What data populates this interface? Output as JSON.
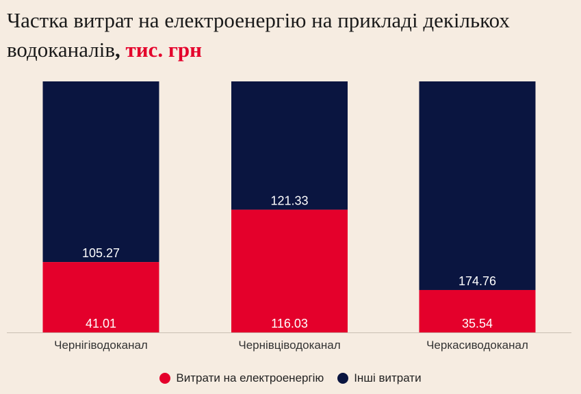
{
  "title": {
    "main": "Частка витрат на електроенергію на прикладі декількох водоканалів",
    "comma": ",",
    "unit": "тис. грн"
  },
  "colors": {
    "background": "#f6ece1",
    "electricity": "#e4002b",
    "other": "#0a1540"
  },
  "chart_data": {
    "type": "bar",
    "stacked": true,
    "categories": [
      "Чернігіводоканал",
      "Чернівціводоканал",
      "Черкасиводоканал"
    ],
    "series": [
      {
        "name": "Витрати на електроенергію",
        "values": [
          41.01,
          116.03,
          35.54
        ],
        "color": "#e4002b"
      },
      {
        "name": "Інші витрати",
        "values": [
          105.27,
          121.33,
          174.76
        ],
        "color": "#0a1540"
      }
    ],
    "normalized": true,
    "grid": false,
    "legend_position": "bottom-center"
  }
}
